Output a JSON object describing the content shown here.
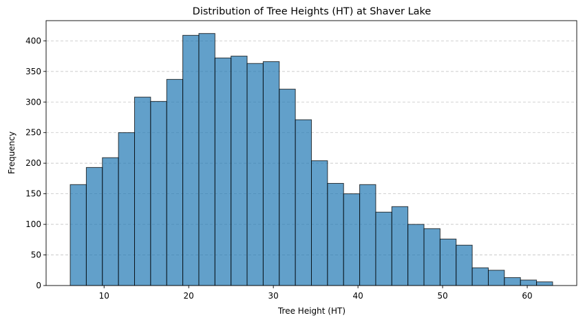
{
  "chart_data": {
    "type": "bar",
    "title": "Distribution of Tree Heights (HT) at Shaver Lake",
    "xlabel": "Tree Height (HT)",
    "ylabel": "Frequency",
    "xlim": [
      3.15,
      65.85
    ],
    "ylim": [
      0,
      433
    ],
    "xticks": [
      10,
      20,
      30,
      40,
      50,
      60
    ],
    "yticks": [
      0,
      50,
      100,
      150,
      200,
      250,
      300,
      350,
      400
    ],
    "grid": "y",
    "bin_edges": [
      6.0,
      7.9,
      9.8,
      11.7,
      13.6,
      15.5,
      17.4,
      19.3,
      21.2,
      23.1,
      25.0,
      26.9,
      28.8,
      30.7,
      32.6,
      34.5,
      36.4,
      38.3,
      40.2,
      42.1,
      44.0,
      45.9,
      47.8,
      49.7,
      51.6,
      53.5,
      55.4,
      57.3,
      59.2,
      61.1,
      63.0
    ],
    "values": [
      165,
      193,
      209,
      250,
      308,
      301,
      337,
      409,
      412,
      372,
      375,
      363,
      366,
      321,
      271,
      204,
      167,
      150,
      165,
      120,
      129,
      100,
      93,
      76,
      66,
      29,
      25,
      13,
      9,
      6
    ],
    "color": "#1f77b4"
  }
}
